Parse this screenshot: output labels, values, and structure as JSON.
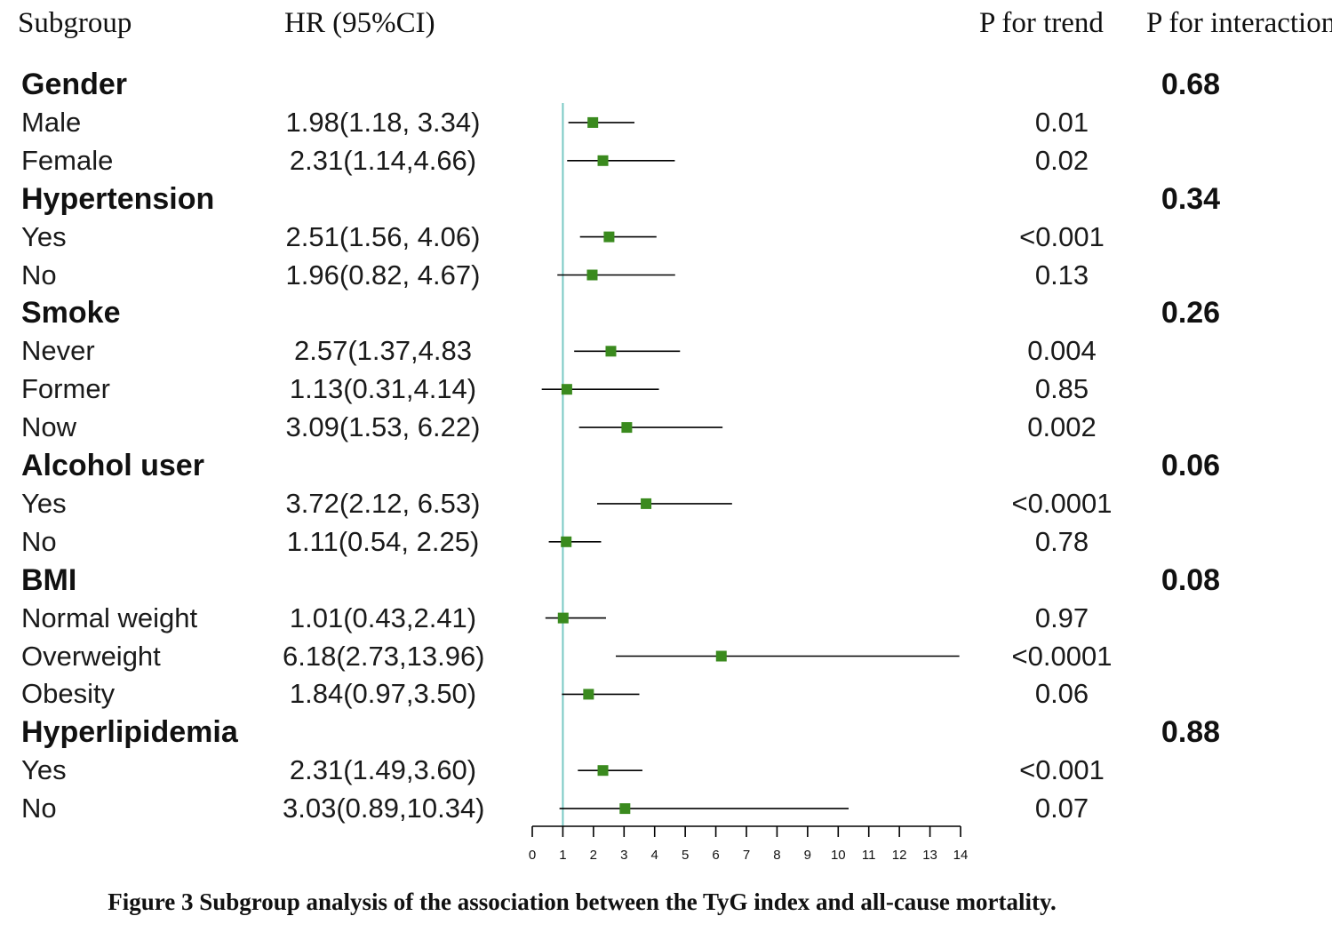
{
  "headers": {
    "subgroup": "Subgroup",
    "hr": "HR (95%CI)",
    "p_trend": "P for trend",
    "p_interaction": "P for interaction"
  },
  "caption": "Figure 3 Subgroup analysis of the association between the TyG index and all-cause mortality.",
  "colors": {
    "marker": "#3a8a1e",
    "reference_line": "#79c9c4",
    "ci_line": "#000000"
  },
  "chart_data": {
    "type": "forest",
    "title": "Subgroup analysis of the association between the TyG index and all-cause mortality",
    "reference_value": 1,
    "xlim": [
      0,
      14
    ],
    "x_ticks": [
      0,
      1,
      2,
      3,
      4,
      5,
      6,
      7,
      8,
      9,
      10,
      11,
      12,
      13,
      14
    ],
    "rows": [
      {
        "kind": "group",
        "label": "Gender",
        "p_interaction": "0.68"
      },
      {
        "kind": "item",
        "label": "Male",
        "hr_text": "1.98(1.18, 3.34)",
        "hr": 1.98,
        "lo": 1.18,
        "hi": 3.34,
        "p_trend": "0.01"
      },
      {
        "kind": "item",
        "label": "Female",
        "hr_text": "2.31(1.14,4.66)",
        "hr": 2.31,
        "lo": 1.14,
        "hi": 4.66,
        "p_trend": "0.02"
      },
      {
        "kind": "group",
        "label": "Hypertension",
        "p_interaction": "0.34"
      },
      {
        "kind": "item",
        "label": "Yes",
        "hr_text": "2.51(1.56, 4.06)",
        "hr": 2.51,
        "lo": 1.56,
        "hi": 4.06,
        "p_trend": "<0.001"
      },
      {
        "kind": "item",
        "label": "No",
        "hr_text": "1.96(0.82, 4.67)",
        "hr": 1.96,
        "lo": 0.82,
        "hi": 4.67,
        "p_trend": "0.13"
      },
      {
        "kind": "group",
        "label": "Smoke",
        "p_interaction": "0.26"
      },
      {
        "kind": "item",
        "label": "Never",
        "hr_text": "2.57(1.37,4.83",
        "hr": 2.57,
        "lo": 1.37,
        "hi": 4.83,
        "p_trend": "0.004"
      },
      {
        "kind": "item",
        "label": "Former",
        "hr_text": "1.13(0.31,4.14)",
        "hr": 1.13,
        "lo": 0.31,
        "hi": 4.14,
        "p_trend": "0.85"
      },
      {
        "kind": "item",
        "label": "Now",
        "hr_text": "3.09(1.53, 6.22)",
        "hr": 3.09,
        "lo": 1.53,
        "hi": 6.22,
        "p_trend": "0.002"
      },
      {
        "kind": "group",
        "label": "Alcohol user",
        "p_interaction": "0.06"
      },
      {
        "kind": "item",
        "label": "Yes",
        "hr_text": "3.72(2.12, 6.53)",
        "hr": 3.72,
        "lo": 2.12,
        "hi": 6.53,
        "p_trend": "<0.0001"
      },
      {
        "kind": "item",
        "label": "No",
        "hr_text": "1.11(0.54, 2.25)",
        "hr": 1.11,
        "lo": 0.54,
        "hi": 2.25,
        "p_trend": "0.78"
      },
      {
        "kind": "group",
        "label": "BMI",
        "p_interaction": "0.08"
      },
      {
        "kind": "item",
        "label": "Normal weight",
        "hr_text": "1.01(0.43,2.41)",
        "hr": 1.01,
        "lo": 0.43,
        "hi": 2.41,
        "p_trend": "0.97"
      },
      {
        "kind": "item",
        "label": "Overweight",
        "hr_text": "6.18(2.73,13.96)",
        "hr": 6.18,
        "lo": 2.73,
        "hi": 13.96,
        "p_trend": "<0.0001"
      },
      {
        "kind": "item",
        "label": "Obesity",
        "hr_text": "1.84(0.97,3.50)",
        "hr": 1.84,
        "lo": 0.97,
        "hi": 3.5,
        "p_trend": "0.06"
      },
      {
        "kind": "group",
        "label": "Hyperlipidemia",
        "p_interaction": "0.88"
      },
      {
        "kind": "item",
        "label": "Yes",
        "hr_text": "2.31(1.49,3.60)",
        "hr": 2.31,
        "lo": 1.49,
        "hi": 3.6,
        "p_trend": "<0.001"
      },
      {
        "kind": "item",
        "label": "No",
        "hr_text": "3.03(0.89,10.34)",
        "hr": 3.03,
        "lo": 0.89,
        "hi": 10.34,
        "p_trend": "0.07"
      }
    ]
  }
}
